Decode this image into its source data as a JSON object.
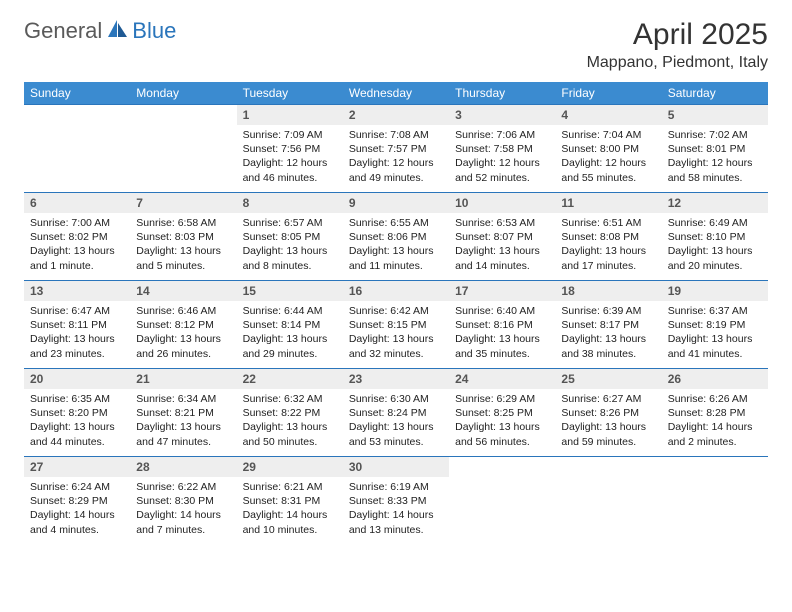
{
  "brand": {
    "part1": "General",
    "part2": "Blue"
  },
  "title": "April 2025",
  "location": "Mappano, Piedmont, Italy",
  "colors": {
    "header_bg": "#3b8bd0",
    "header_text": "#ffffff",
    "row_border": "#2a75bb",
    "daynum_bg": "#eeeeee",
    "daynum_text": "#555555",
    "body_text": "#222222",
    "brand_gray": "#5a5a5a",
    "brand_blue": "#2a75bb"
  },
  "weekdays": [
    "Sunday",
    "Monday",
    "Tuesday",
    "Wednesday",
    "Thursday",
    "Friday",
    "Saturday"
  ],
  "weeks": [
    [
      null,
      null,
      {
        "n": "1",
        "sr": "7:09 AM",
        "ss": "7:56 PM",
        "dl": "12 hours and 46 minutes."
      },
      {
        "n": "2",
        "sr": "7:08 AM",
        "ss": "7:57 PM",
        "dl": "12 hours and 49 minutes."
      },
      {
        "n": "3",
        "sr": "7:06 AM",
        "ss": "7:58 PM",
        "dl": "12 hours and 52 minutes."
      },
      {
        "n": "4",
        "sr": "7:04 AM",
        "ss": "8:00 PM",
        "dl": "12 hours and 55 minutes."
      },
      {
        "n": "5",
        "sr": "7:02 AM",
        "ss": "8:01 PM",
        "dl": "12 hours and 58 minutes."
      }
    ],
    [
      {
        "n": "6",
        "sr": "7:00 AM",
        "ss": "8:02 PM",
        "dl": "13 hours and 1 minute."
      },
      {
        "n": "7",
        "sr": "6:58 AM",
        "ss": "8:03 PM",
        "dl": "13 hours and 5 minutes."
      },
      {
        "n": "8",
        "sr": "6:57 AM",
        "ss": "8:05 PM",
        "dl": "13 hours and 8 minutes."
      },
      {
        "n": "9",
        "sr": "6:55 AM",
        "ss": "8:06 PM",
        "dl": "13 hours and 11 minutes."
      },
      {
        "n": "10",
        "sr": "6:53 AM",
        "ss": "8:07 PM",
        "dl": "13 hours and 14 minutes."
      },
      {
        "n": "11",
        "sr": "6:51 AM",
        "ss": "8:08 PM",
        "dl": "13 hours and 17 minutes."
      },
      {
        "n": "12",
        "sr": "6:49 AM",
        "ss": "8:10 PM",
        "dl": "13 hours and 20 minutes."
      }
    ],
    [
      {
        "n": "13",
        "sr": "6:47 AM",
        "ss": "8:11 PM",
        "dl": "13 hours and 23 minutes."
      },
      {
        "n": "14",
        "sr": "6:46 AM",
        "ss": "8:12 PM",
        "dl": "13 hours and 26 minutes."
      },
      {
        "n": "15",
        "sr": "6:44 AM",
        "ss": "8:14 PM",
        "dl": "13 hours and 29 minutes."
      },
      {
        "n": "16",
        "sr": "6:42 AM",
        "ss": "8:15 PM",
        "dl": "13 hours and 32 minutes."
      },
      {
        "n": "17",
        "sr": "6:40 AM",
        "ss": "8:16 PM",
        "dl": "13 hours and 35 minutes."
      },
      {
        "n": "18",
        "sr": "6:39 AM",
        "ss": "8:17 PM",
        "dl": "13 hours and 38 minutes."
      },
      {
        "n": "19",
        "sr": "6:37 AM",
        "ss": "8:19 PM",
        "dl": "13 hours and 41 minutes."
      }
    ],
    [
      {
        "n": "20",
        "sr": "6:35 AM",
        "ss": "8:20 PM",
        "dl": "13 hours and 44 minutes."
      },
      {
        "n": "21",
        "sr": "6:34 AM",
        "ss": "8:21 PM",
        "dl": "13 hours and 47 minutes."
      },
      {
        "n": "22",
        "sr": "6:32 AM",
        "ss": "8:22 PM",
        "dl": "13 hours and 50 minutes."
      },
      {
        "n": "23",
        "sr": "6:30 AM",
        "ss": "8:24 PM",
        "dl": "13 hours and 53 minutes."
      },
      {
        "n": "24",
        "sr": "6:29 AM",
        "ss": "8:25 PM",
        "dl": "13 hours and 56 minutes."
      },
      {
        "n": "25",
        "sr": "6:27 AM",
        "ss": "8:26 PM",
        "dl": "13 hours and 59 minutes."
      },
      {
        "n": "26",
        "sr": "6:26 AM",
        "ss": "8:28 PM",
        "dl": "14 hours and 2 minutes."
      }
    ],
    [
      {
        "n": "27",
        "sr": "6:24 AM",
        "ss": "8:29 PM",
        "dl": "14 hours and 4 minutes."
      },
      {
        "n": "28",
        "sr": "6:22 AM",
        "ss": "8:30 PM",
        "dl": "14 hours and 7 minutes."
      },
      {
        "n": "29",
        "sr": "6:21 AM",
        "ss": "8:31 PM",
        "dl": "14 hours and 10 minutes."
      },
      {
        "n": "30",
        "sr": "6:19 AM",
        "ss": "8:33 PM",
        "dl": "14 hours and 13 minutes."
      },
      null,
      null,
      null
    ]
  ],
  "labels": {
    "sunrise": "Sunrise:",
    "sunset": "Sunset:",
    "daylight": "Daylight:"
  }
}
